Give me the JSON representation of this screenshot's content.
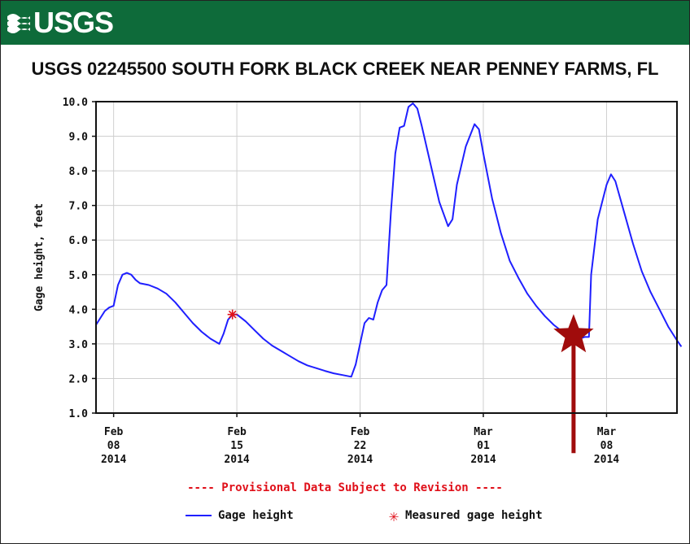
{
  "banner": {
    "logo_text": "USGS",
    "logo_icon": "usgs-waves-icon",
    "color": "#0e6b3a"
  },
  "provisional_note": "---- Provisional Data Subject to Revision ----",
  "legend": {
    "series_label": "Gage height",
    "measured_label": "Measured gage height"
  },
  "colors": {
    "series": "#1f1fff",
    "measured": "#e0101a",
    "annotation": "#a00c0c"
  },
  "chart_data": {
    "type": "line",
    "title": "USGS 02245500 SOUTH FORK BLACK CREEK NEAR PENNEY FARMS, FL",
    "xlabel": "",
    "ylabel": "Gage height, feet",
    "ylim": [
      1.0,
      10.0
    ],
    "yticks": [
      "1.0",
      "2.0",
      "3.0",
      "4.0",
      "5.0",
      "6.0",
      "7.0",
      "8.0",
      "9.0",
      "10.0"
    ],
    "xlim": [
      "2014-02-07",
      "2014-03-12"
    ],
    "xticks": [
      {
        "date": "2014-02-08",
        "label": [
          "Feb",
          "08",
          "2014"
        ]
      },
      {
        "date": "2014-02-15",
        "label": [
          "Feb",
          "15",
          "2014"
        ]
      },
      {
        "date": "2014-02-22",
        "label": [
          "Feb",
          "22",
          "2014"
        ]
      },
      {
        "date": "2014-03-01",
        "label": [
          "Mar",
          "01",
          "2014"
        ]
      },
      {
        "date": "2014-03-08",
        "label": [
          "Mar",
          "08",
          "2014"
        ]
      }
    ],
    "grid": true,
    "series": [
      {
        "name": "Gage height",
        "points": [
          [
            "2014-02-07T00:00",
            3.55
          ],
          [
            "2014-02-07T06:00",
            3.75
          ],
          [
            "2014-02-07T12:00",
            3.95
          ],
          [
            "2014-02-07T18:00",
            4.05
          ],
          [
            "2014-02-08T00:00",
            4.1
          ],
          [
            "2014-02-08T06:00",
            4.7
          ],
          [
            "2014-02-08T12:00",
            5.0
          ],
          [
            "2014-02-08T18:00",
            5.05
          ],
          [
            "2014-02-09T00:00",
            5.0
          ],
          [
            "2014-02-09T06:00",
            4.85
          ],
          [
            "2014-02-09T12:00",
            4.75
          ],
          [
            "2014-02-10T00:00",
            4.7
          ],
          [
            "2014-02-10T12:00",
            4.6
          ],
          [
            "2014-02-11T00:00",
            4.45
          ],
          [
            "2014-02-11T12:00",
            4.2
          ],
          [
            "2014-02-12T00:00",
            3.9
          ],
          [
            "2014-02-12T12:00",
            3.6
          ],
          [
            "2014-02-13T00:00",
            3.35
          ],
          [
            "2014-02-13T12:00",
            3.15
          ],
          [
            "2014-02-14T00:00",
            3.0
          ],
          [
            "2014-02-14T06:00",
            3.3
          ],
          [
            "2014-02-14T12:00",
            3.7
          ],
          [
            "2014-02-14T18:00",
            3.85
          ],
          [
            "2014-02-15T00:00",
            3.85
          ],
          [
            "2014-02-15T12:00",
            3.65
          ],
          [
            "2014-02-16T00:00",
            3.4
          ],
          [
            "2014-02-16T12:00",
            3.15
          ],
          [
            "2014-02-17T00:00",
            2.95
          ],
          [
            "2014-02-17T12:00",
            2.8
          ],
          [
            "2014-02-18T00:00",
            2.65
          ],
          [
            "2014-02-18T12:00",
            2.5
          ],
          [
            "2014-02-19T00:00",
            2.38
          ],
          [
            "2014-02-19T12:00",
            2.3
          ],
          [
            "2014-02-20T00:00",
            2.22
          ],
          [
            "2014-02-20T12:00",
            2.15
          ],
          [
            "2014-02-21T00:00",
            2.1
          ],
          [
            "2014-02-21T12:00",
            2.05
          ],
          [
            "2014-02-21T18:00",
            2.4
          ],
          [
            "2014-02-22T00:00",
            3.0
          ],
          [
            "2014-02-22T06:00",
            3.6
          ],
          [
            "2014-02-22T12:00",
            3.75
          ],
          [
            "2014-02-22T18:00",
            3.7
          ],
          [
            "2014-02-23T00:00",
            4.2
          ],
          [
            "2014-02-23T06:00",
            4.55
          ],
          [
            "2014-02-23T12:00",
            4.7
          ],
          [
            "2014-02-23T18:00",
            6.8
          ],
          [
            "2014-02-24T00:00",
            8.5
          ],
          [
            "2014-02-24T06:00",
            9.25
          ],
          [
            "2014-02-24T12:00",
            9.3
          ],
          [
            "2014-02-24T18:00",
            9.85
          ],
          [
            "2014-02-25T00:00",
            9.95
          ],
          [
            "2014-02-25T06:00",
            9.8
          ],
          [
            "2014-02-25T12:00",
            9.3
          ],
          [
            "2014-02-26T00:00",
            8.2
          ],
          [
            "2014-02-26T12:00",
            7.1
          ],
          [
            "2014-02-27T00:00",
            6.4
          ],
          [
            "2014-02-27T06:00",
            6.6
          ],
          [
            "2014-02-27T12:00",
            7.6
          ],
          [
            "2014-02-28T00:00",
            8.7
          ],
          [
            "2014-02-28T12:00",
            9.35
          ],
          [
            "2014-02-28T18:00",
            9.2
          ],
          [
            "2014-03-01T00:00",
            8.5
          ],
          [
            "2014-03-01T12:00",
            7.2
          ],
          [
            "2014-03-02T00:00",
            6.2
          ],
          [
            "2014-03-02T12:00",
            5.4
          ],
          [
            "2014-03-03T00:00",
            4.9
          ],
          [
            "2014-03-03T12:00",
            4.45
          ],
          [
            "2014-03-04T00:00",
            4.1
          ],
          [
            "2014-03-04T12:00",
            3.8
          ],
          [
            "2014-03-05T00:00",
            3.55
          ],
          [
            "2014-03-05T12:00",
            3.35
          ],
          [
            "2014-03-06T00:00",
            3.2
          ],
          [
            "2014-03-06T12:00",
            3.15
          ],
          [
            "2014-03-06T18:00",
            3.2
          ],
          [
            "2014-03-07T00:00",
            3.2
          ],
          [
            "2014-03-07T03:00",
            5.0
          ],
          [
            "2014-03-07T12:00",
            6.6
          ],
          [
            "2014-03-08T00:00",
            7.6
          ],
          [
            "2014-03-08T06:00",
            7.9
          ],
          [
            "2014-03-08T12:00",
            7.7
          ],
          [
            "2014-03-09T00:00",
            6.8
          ],
          [
            "2014-03-09T12:00",
            5.9
          ],
          [
            "2014-03-10T00:00",
            5.1
          ],
          [
            "2014-03-10T12:00",
            4.5
          ],
          [
            "2014-03-11T00:00",
            4.0
          ],
          [
            "2014-03-11T12:00",
            3.5
          ],
          [
            "2014-03-12T00:00",
            3.1
          ],
          [
            "2014-03-12T06:00",
            2.92
          ]
        ]
      }
    ],
    "measured": [
      {
        "name": "Measured gage height",
        "x": "2014-02-14T18:00",
        "y": 3.85
      }
    ],
    "annotation": {
      "marker": "star-with-arrow",
      "x": "2014-03-06T03:00",
      "y": 3.25
    }
  }
}
